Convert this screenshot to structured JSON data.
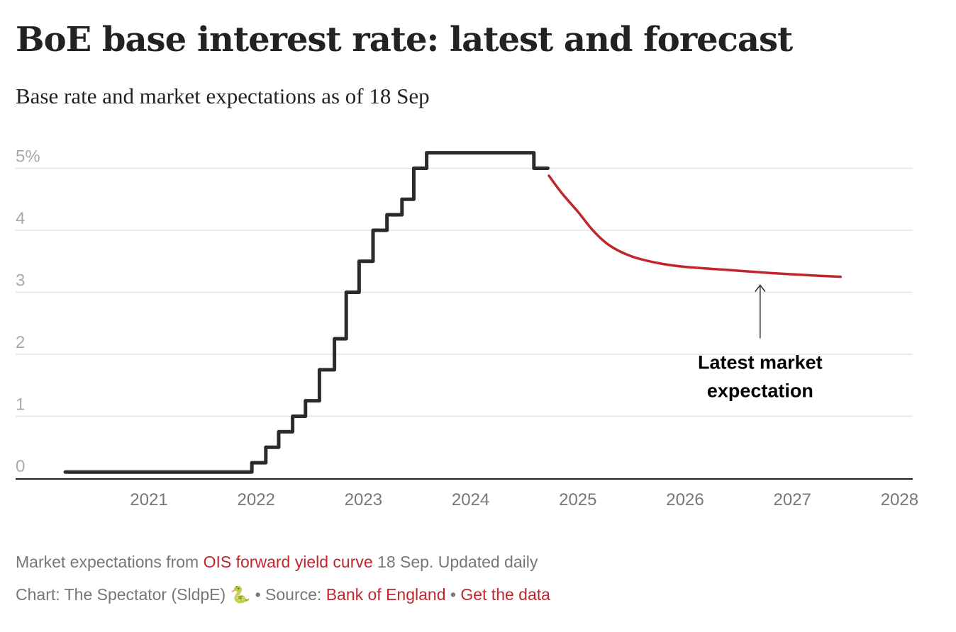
{
  "header": {
    "title": "BoE base interest rate: latest and forecast",
    "subtitle": "Base rate and market expectations as of 18 Sep"
  },
  "footer": {
    "note_prefix": "Market expectations from",
    "note_link": "OIS forward yield curve",
    "note_suffix": "18 Sep. Updated daily",
    "credit": "Chart: The Spectator (SldpE)",
    "credit_icon": "🐍",
    "bullet": "•",
    "source_label": "Source:",
    "source_link": "Bank of England",
    "data_link": "Get the data"
  },
  "chart_data": {
    "type": "line",
    "title": "BoE base interest rate: latest and forecast",
    "subtitle": "Base rate and market expectations as of 18 Sep",
    "xlabel": "",
    "ylabel": "",
    "xlim": [
      2020.0,
      2028.0
    ],
    "ylim": [
      0,
      5.25
    ],
    "grid": true,
    "y_ticks": [
      0,
      1,
      2,
      3,
      4,
      5
    ],
    "y_tick_labels": [
      "0",
      "1",
      "2",
      "3",
      "4",
      "5%"
    ],
    "x_ticks": [
      2021,
      2022,
      2023,
      2024,
      2025,
      2026,
      2027,
      2028
    ],
    "x_tick_labels": [
      "2021",
      "2022",
      "2023",
      "2024",
      "2025",
      "2026",
      "2027",
      "2028"
    ],
    "colors": {
      "base_rate": "#2b2b2b",
      "forecast": "#c0272d",
      "grid": "#e3e3e3",
      "axis": "#222222"
    },
    "series": [
      {
        "name": "Base rate",
        "style": "step",
        "points": [
          [
            2020.22,
            0.1
          ],
          [
            2021.96,
            0.25
          ],
          [
            2022.09,
            0.5
          ],
          [
            2022.21,
            0.75
          ],
          [
            2022.34,
            1.0
          ],
          [
            2022.46,
            1.25
          ],
          [
            2022.59,
            1.75
          ],
          [
            2022.73,
            2.25
          ],
          [
            2022.84,
            3.0
          ],
          [
            2022.96,
            3.5
          ],
          [
            2023.09,
            4.0
          ],
          [
            2023.22,
            4.25
          ],
          [
            2023.36,
            4.5
          ],
          [
            2023.47,
            5.0
          ],
          [
            2023.59,
            5.25
          ],
          [
            2024.59,
            5.0
          ],
          [
            2024.72,
            5.0
          ]
        ]
      },
      {
        "name": "Latest market expectation",
        "style": "smooth",
        "points": [
          [
            2024.73,
            4.88
          ],
          [
            2024.85,
            4.6
          ],
          [
            2025.0,
            4.3
          ],
          [
            2025.15,
            3.98
          ],
          [
            2025.3,
            3.75
          ],
          [
            2025.5,
            3.58
          ],
          [
            2025.75,
            3.47
          ],
          [
            2026.0,
            3.41
          ],
          [
            2026.4,
            3.36
          ],
          [
            2026.8,
            3.31
          ],
          [
            2027.2,
            3.27
          ],
          [
            2027.45,
            3.25
          ]
        ]
      }
    ],
    "annotations": [
      {
        "text_lines": [
          "Latest market",
          "expectation"
        ],
        "target": [
          2026.7,
          3.32
        ],
        "arrow": "up"
      }
    ]
  }
}
